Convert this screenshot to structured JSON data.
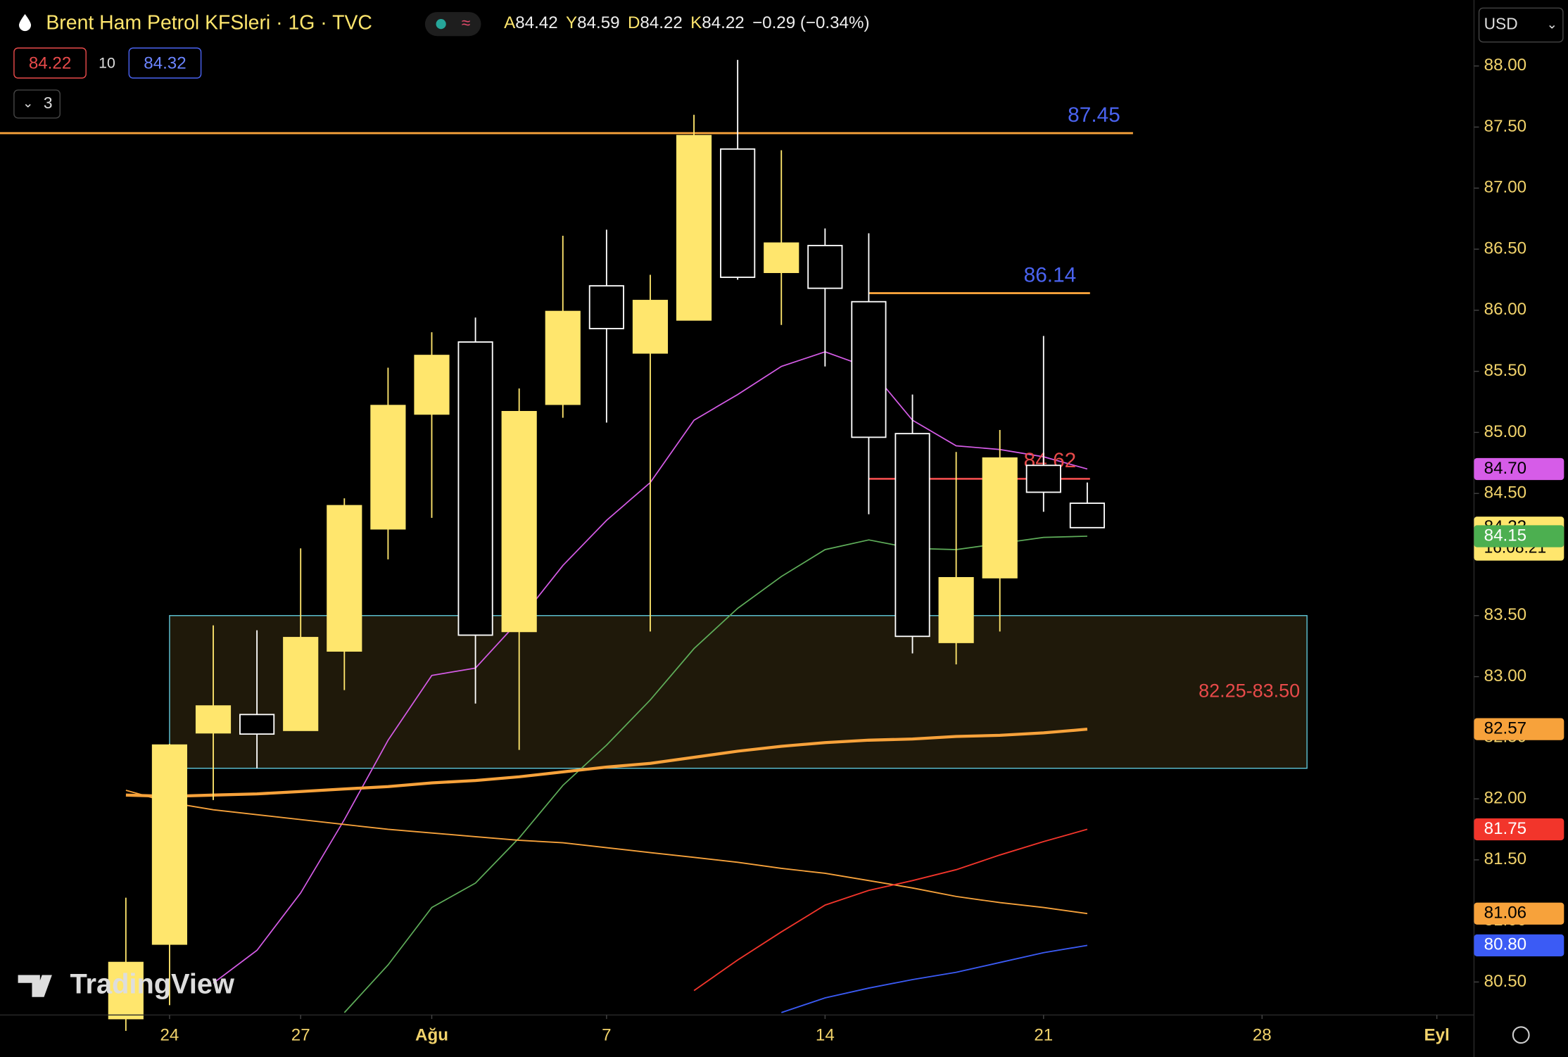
{
  "header": {
    "title": "Brent Ham Petrol KFSleri · 1G · TVC",
    "ohlc_letters": [
      "A",
      "Y",
      "D",
      "K"
    ],
    "change": "−0.29 (−0.34%)",
    "sell": "84.22",
    "spread": "10",
    "buy": "84.32",
    "indicators": "3",
    "currency": "USD",
    "logo": "TradingView"
  },
  "chart_data": {
    "type": "candlestick",
    "up_color": "#ffe66d",
    "down_color": "#000000",
    "open": [
      80.2,
      80.81,
      82.54,
      82.69,
      82.56,
      83.21,
      84.21,
      85.15,
      85.74,
      83.37,
      85.23,
      86.2,
      85.65,
      85.92,
      87.32,
      86.31,
      86.53,
      86.07,
      84.99,
      83.28,
      83.81,
      84.73,
      84.42
    ],
    "high": [
      81.19,
      82.45,
      83.42,
      83.38,
      84.05,
      84.46,
      85.53,
      85.82,
      85.94,
      85.36,
      86.61,
      86.66,
      86.29,
      87.6,
      88.05,
      87.31,
      86.67,
      86.63,
      85.31,
      84.84,
      85.02,
      85.79,
      84.59
    ],
    "low": [
      80.1,
      80.31,
      81.99,
      82.25,
      82.56,
      82.89,
      83.96,
      84.3,
      82.78,
      82.4,
      85.12,
      85.08,
      83.37,
      85.92,
      86.25,
      85.88,
      85.54,
      84.33,
      83.19,
      83.1,
      83.37,
      84.35,
      84.22
    ],
    "close": [
      80.66,
      82.44,
      82.76,
      82.53,
      83.32,
      84.4,
      85.22,
      85.63,
      83.34,
      85.17,
      85.99,
      85.85,
      86.08,
      87.43,
      86.27,
      86.55,
      86.18,
      84.96,
      83.33,
      83.81,
      84.79,
      84.51,
      84.22
    ],
    "xlim": [
      -2.88,
      30.85
    ],
    "ylim": [
      80.23,
      88.54
    ],
    "xticks": [
      {
        "value": 1,
        "label": "24"
      },
      {
        "value": 4,
        "label": "27"
      },
      {
        "value": 7,
        "label": "Ağu"
      },
      {
        "value": 11,
        "label": "7"
      },
      {
        "value": 16,
        "label": "14"
      },
      {
        "value": 21,
        "label": "21"
      },
      {
        "value": 26,
        "label": "28"
      },
      {
        "value": 30,
        "label": "Eyl"
      }
    ],
    "yticks": [
      {
        "value": 80.5,
        "label": "80.50"
      },
      {
        "value": 81,
        "label": "81.00"
      },
      {
        "value": 81.5,
        "label": "81.50"
      },
      {
        "value": 82,
        "label": "82.00"
      },
      {
        "value": 82.5,
        "label": "82.50"
      },
      {
        "value": 83,
        "label": "83.00"
      },
      {
        "value": 83.5,
        "label": "83.50"
      },
      {
        "value": 84,
        "label": "84.00"
      },
      {
        "value": 84.5,
        "label": "84.50"
      },
      {
        "value": 85,
        "label": "85.00"
      },
      {
        "value": 85.5,
        "label": "85.50"
      },
      {
        "value": 86,
        "label": "86.00"
      },
      {
        "value": 86.5,
        "label": "86.50"
      },
      {
        "value": 87,
        "label": "87.00"
      },
      {
        "value": 87.5,
        "label": "87.50"
      },
      {
        "value": 88,
        "label": "88.00"
      }
    ],
    "series": [
      {
        "color": "#d65ce8",
        "width": 1.2,
        "values": [
          null,
          null,
          80.49,
          80.76,
          81.23,
          81.83,
          82.48,
          83.01,
          83.07,
          83.46,
          83.91,
          84.28,
          84.59,
          85.1,
          85.31,
          85.54,
          85.66,
          85.53,
          85.1,
          84.89,
          84.86,
          84.8,
          84.7
        ]
      },
      {
        "color": "#5fae5a",
        "width": 1.2,
        "values": [
          null,
          null,
          null,
          null,
          null,
          80.25,
          80.64,
          81.11,
          81.31,
          81.68,
          82.11,
          82.44,
          82.81,
          83.23,
          83.56,
          83.82,
          84.04,
          84.12,
          84.05,
          84.04,
          84.09,
          84.14,
          84.15
        ]
      },
      {
        "color": "#f7a23b",
        "width": 3,
        "values": [
          82.03,
          82.02,
          82.03,
          82.04,
          82.06,
          82.08,
          82.1,
          82.13,
          82.15,
          82.18,
          82.22,
          82.26,
          82.29,
          82.34,
          82.39,
          82.43,
          82.46,
          82.48,
          82.49,
          82.51,
          82.52,
          82.54,
          82.57
        ]
      },
      {
        "color": "#f7a23b",
        "width": 1.3,
        "values": [
          82.07,
          81.97,
          81.91,
          81.87,
          81.83,
          81.79,
          81.75,
          81.72,
          81.69,
          81.66,
          81.64,
          81.6,
          81.56,
          81.52,
          81.48,
          81.43,
          81.39,
          81.33,
          81.27,
          81.2,
          81.15,
          81.11,
          81.06
        ]
      },
      {
        "color": "#f2352b",
        "width": 1.3,
        "values": [
          null,
          null,
          null,
          null,
          null,
          null,
          null,
          null,
          null,
          null,
          null,
          null,
          null,
          80.43,
          80.68,
          80.91,
          81.13,
          81.25,
          81.33,
          81.42,
          81.54,
          81.65,
          81.75
        ]
      },
      {
        "color": "#3b5bf5",
        "width": 1.3,
        "values": [
          null,
          null,
          null,
          null,
          null,
          null,
          null,
          null,
          null,
          null,
          null,
          null,
          null,
          null,
          null,
          80.25,
          80.37,
          80.45,
          80.52,
          80.58,
          80.66,
          80.74,
          80.8
        ]
      }
    ],
    "levels": [
      {
        "value": 87.45,
        "color": "#f7a23b",
        "label_color": "#4a63f0"
      },
      {
        "value": 86.14,
        "color": "#f7a23b",
        "label_color": "#4a63f0"
      },
      {
        "value": 84.62,
        "color": "#e84a4a",
        "label_color": "#e84a4a"
      }
    ],
    "zone": {
      "low": 82.25,
      "high": 83.5,
      "label": "82.25-83.50",
      "color": "#5fc4d6"
    },
    "badges": [
      {
        "value": 84.7,
        "label": "84.70",
        "color": "#d65ce8",
        "text_color": "#000000"
      },
      {
        "value": 84.22,
        "label": "84.22",
        "countdown": "16:08:21",
        "color": "#ffe66d",
        "text_color": "#000000"
      },
      {
        "value": 84.15,
        "label": "84.15",
        "color": "#4caf50",
        "text_color": "#ffffff"
      },
      {
        "value": 82.57,
        "label": "82.57",
        "color": "#f7a23b",
        "text_color": "#000000"
      },
      {
        "value": 81.75,
        "label": "81.75",
        "color": "#f2352b",
        "text_color": "#ffffff"
      },
      {
        "value": 81.06,
        "label": "81.06",
        "color": "#f7a23b",
        "text_color": "#000000"
      },
      {
        "value": 80.8,
        "label": "80.80",
        "color": "#3b5bf5",
        "text_color": "#ffffff"
      }
    ]
  }
}
